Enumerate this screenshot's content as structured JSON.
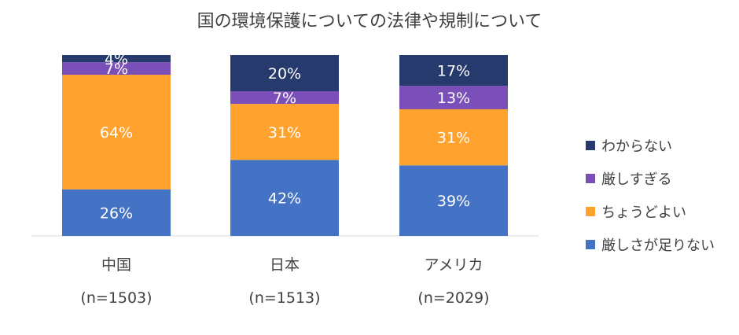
{
  "chart_data": {
    "type": "stacked-bar",
    "title": "国の環境保護についての法律や規制について",
    "categories": [
      {
        "name": "中国",
        "sample": "(n=1503)"
      },
      {
        "name": "日本",
        "sample": "(n=1513)"
      },
      {
        "name": "アメリカ",
        "sample": "(n=2029)"
      }
    ],
    "series": [
      {
        "name": "厳しさが足りない",
        "color": "#4472C4",
        "values": [
          26,
          42,
          39
        ],
        "labels": [
          "26%",
          "42%",
          "39%"
        ]
      },
      {
        "name": "ちょうどよい",
        "color": "#FFA22E",
        "values": [
          64,
          31,
          31
        ],
        "labels": [
          "64%",
          "31%",
          "31%"
        ]
      },
      {
        "name": "厳しすぎる",
        "color": "#7B4FB8",
        "values": [
          7,
          7,
          13
        ],
        "labels": [
          "7%",
          "7%",
          "13%"
        ]
      },
      {
        "name": "わからない",
        "color": "#263A6E",
        "values": [
          4,
          20,
          17
        ],
        "labels": [
          "4%",
          "20%",
          "17%"
        ]
      }
    ],
    "legend_order": [
      "わからない",
      "厳しすぎる",
      "ちょうどよい",
      "厳しさが足りない"
    ],
    "ylim": [
      0,
      100
    ],
    "legend_position": "right"
  }
}
